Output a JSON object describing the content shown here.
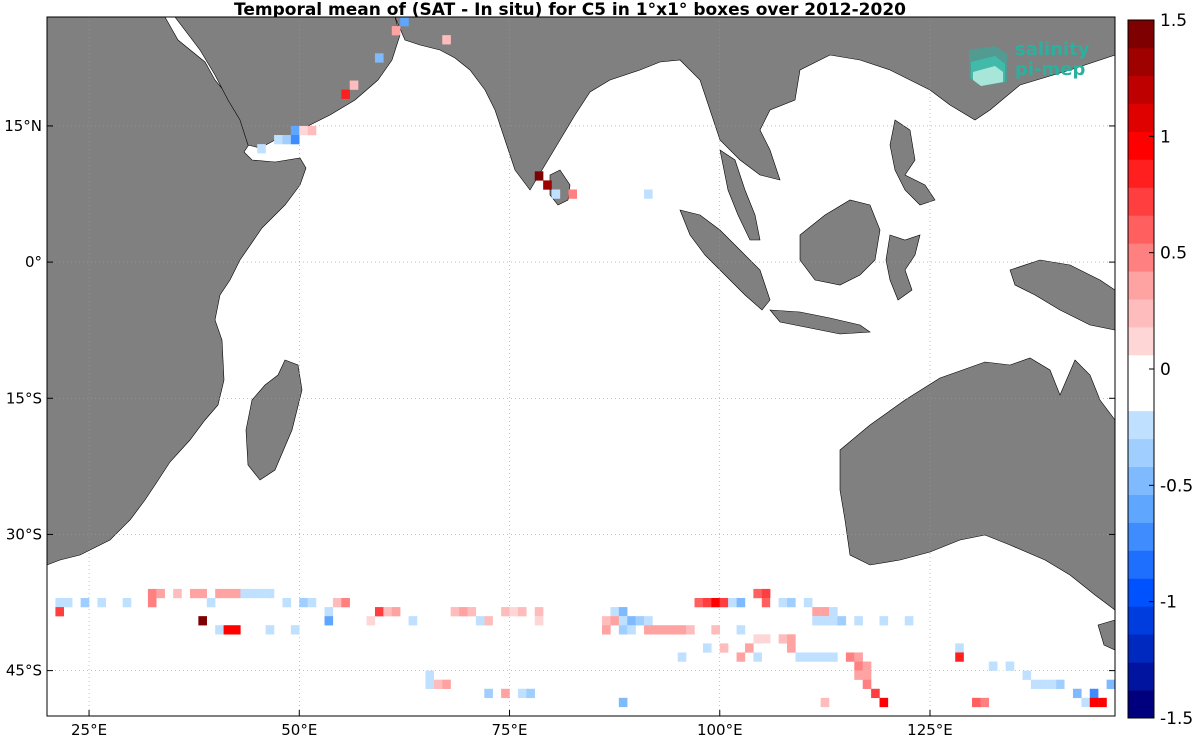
{
  "title": "Temporal mean of (SAT - In situ) for C5 in 1°x1° boxes over 2012-2020",
  "logo": {
    "line1": "salinity",
    "line2": "pi-mep"
  },
  "map": {
    "lon_range": [
      20,
      147
    ],
    "lat_range": [
      -50,
      27
    ],
    "land_color": "#808080",
    "grid": true
  },
  "axes": {
    "x_ticks": [
      {
        "lon": 25,
        "label": "25°E"
      },
      {
        "lon": 50,
        "label": "50°E"
      },
      {
        "lon": 75,
        "label": "75°E"
      },
      {
        "lon": 100,
        "label": "100°E"
      },
      {
        "lon": 125,
        "label": "125°E"
      }
    ],
    "y_ticks": [
      {
        "lat": 15,
        "label": "15°N"
      },
      {
        "lat": 0,
        "label": "0°"
      },
      {
        "lat": -15,
        "label": "15°S"
      },
      {
        "lat": -30,
        "label": "30°S"
      },
      {
        "lat": -45,
        "label": "45°S"
      }
    ]
  },
  "colorbar": {
    "min": -1.5,
    "max": 1.5,
    "ticks": [
      {
        "value": 1.5,
        "label": "1.5"
      },
      {
        "value": 1,
        "label": "1"
      },
      {
        "value": 0.5,
        "label": "0.5"
      },
      {
        "value": 0,
        "label": "0"
      },
      {
        "value": -0.5,
        "label": "-0.5"
      },
      {
        "value": -1,
        "label": "-1"
      },
      {
        "value": -1.5,
        "label": "-1.5"
      }
    ],
    "colors": [
      "#00007f",
      "#00149f",
      "#0029bf",
      "#003ddf",
      "#0052ff",
      "#1f6fff",
      "#3f8cff",
      "#5fa6ff",
      "#7fbaff",
      "#9fceff",
      "#bfe0ff",
      "#ffffff",
      "#ffffff",
      "#ffd6d6",
      "#ffbcbc",
      "#ffa2a2",
      "#ff8080",
      "#ff5f5f",
      "#ff3f3f",
      "#ff1f1f",
      "#ff0000",
      "#df0000",
      "#bf0000",
      "#9f0000",
      "#7f0000"
    ]
  },
  "chart_data": {
    "type": "heatmap",
    "title": "Temporal mean of (SAT - In situ) for C5 in 1°x1° boxes over 2012-2020",
    "units": "",
    "cells": [
      {
        "lon": 62,
        "lat": 26,
        "value": -0.6
      },
      {
        "lon": 61,
        "lat": 25,
        "value": 0.4
      },
      {
        "lon": 67,
        "lat": 24,
        "value": 0.2
      },
      {
        "lon": 59,
        "lat": 22,
        "value": -0.5
      },
      {
        "lon": 56,
        "lat": 19,
        "value": 0.2
      },
      {
        "lon": 55,
        "lat": 18,
        "value": 0.8
      },
      {
        "lon": 49,
        "lat": 14,
        "value": -0.6
      },
      {
        "lon": 50,
        "lat": 14,
        "value": 0.1
      },
      {
        "lon": 51,
        "lat": 14,
        "value": 0.2
      },
      {
        "lon": 47,
        "lat": 13,
        "value": -0.3
      },
      {
        "lon": 48,
        "lat": 13,
        "value": -0.4
      },
      {
        "lon": 49,
        "lat": 13,
        "value": -0.7
      },
      {
        "lon": 45,
        "lat": 12,
        "value": -0.3
      },
      {
        "lon": 78,
        "lat": 9,
        "value": 1.5
      },
      {
        "lon": 79,
        "lat": 8,
        "value": 1.3
      },
      {
        "lon": 80,
        "lat": 7,
        "value": -0.3
      },
      {
        "lon": 82,
        "lat": 7,
        "value": 0.5
      },
      {
        "lon": 91,
        "lat": 7,
        "value": -0.3
      },
      {
        "lon": 21,
        "lat": -38,
        "value": -0.3
      },
      {
        "lon": 22,
        "lat": -38,
        "value": -0.3
      },
      {
        "lon": 24,
        "lat": -38,
        "value": -0.4
      },
      {
        "lon": 26,
        "lat": -38,
        "value": -0.2
      },
      {
        "lon": 29,
        "lat": -38,
        "value": -0.2
      },
      {
        "lon": 32,
        "lat": -37,
        "value": 0.5
      },
      {
        "lon": 33,
        "lat": -37,
        "value": 0.4
      },
      {
        "lon": 32,
        "lat": -38,
        "value": 0.5
      },
      {
        "lon": 21,
        "lat": -39,
        "value": 0.7
      },
      {
        "lon": 35,
        "lat": -37,
        "value": 0.2
      },
      {
        "lon": 37,
        "lat": -37,
        "value": 0.3
      },
      {
        "lon": 38,
        "lat": -37,
        "value": 0.4
      },
      {
        "lon": 40,
        "lat": -37,
        "value": 0.4
      },
      {
        "lon": 41,
        "lat": -37,
        "value": 0.4
      },
      {
        "lon": 42,
        "lat": -37,
        "value": 0.4
      },
      {
        "lon": 43,
        "lat": -37,
        "value": -0.2
      },
      {
        "lon": 44,
        "lat": -37,
        "value": -0.2
      },
      {
        "lon": 45,
        "lat": -37,
        "value": -0.3
      },
      {
        "lon": 46,
        "lat": -37,
        "value": -0.2
      },
      {
        "lon": 39,
        "lat": -38,
        "value": -0.2
      },
      {
        "lon": 48,
        "lat": -38,
        "value": -0.3
      },
      {
        "lon": 50,
        "lat": -38,
        "value": -0.4
      },
      {
        "lon": 51,
        "lat": -38,
        "value": -0.2
      },
      {
        "lon": 54,
        "lat": -38,
        "value": 0.2
      },
      {
        "lon": 55,
        "lat": -38,
        "value": 0.5
      },
      {
        "lon": 53,
        "lat": -39,
        "value": -0.3
      },
      {
        "lon": 38,
        "lat": -40,
        "value": 1.4
      },
      {
        "lon": 40,
        "lat": -41,
        "value": -0.3
      },
      {
        "lon": 41,
        "lat": -41,
        "value": 0.9
      },
      {
        "lon": 42,
        "lat": -41,
        "value": 1.0
      },
      {
        "lon": 46,
        "lat": -41,
        "value": -0.3
      },
      {
        "lon": 49,
        "lat": -41,
        "value": -0.3
      },
      {
        "lon": 53,
        "lat": -40,
        "value": -0.6
      },
      {
        "lon": 59,
        "lat": -39,
        "value": 0.7
      },
      {
        "lon": 60,
        "lat": -39,
        "value": 0.2
      },
      {
        "lon": 61,
        "lat": -39,
        "value": 0.3
      },
      {
        "lon": 58,
        "lat": -40,
        "value": 0.1
      },
      {
        "lon": 63,
        "lat": -40,
        "value": -0.3
      },
      {
        "lon": 68,
        "lat": -39,
        "value": 0.2
      },
      {
        "lon": 69,
        "lat": -39,
        "value": 0.3
      },
      {
        "lon": 70,
        "lat": -39,
        "value": 0.2
      },
      {
        "lon": 72,
        "lat": -40,
        "value": 0.2
      },
      {
        "lon": 71,
        "lat": -40,
        "value": -0.2
      },
      {
        "lon": 74,
        "lat": -39,
        "value": 0.2
      },
      {
        "lon": 75,
        "lat": -39,
        "value": 0.1
      },
      {
        "lon": 76,
        "lat": -39,
        "value": 0.2
      },
      {
        "lon": 78,
        "lat": -39,
        "value": 0.2
      },
      {
        "lon": 78,
        "lat": -40,
        "value": 0.1
      },
      {
        "lon": 87,
        "lat": -39,
        "value": -0.2
      },
      {
        "lon": 88,
        "lat": -39,
        "value": -0.5
      },
      {
        "lon": 86,
        "lat": -40,
        "value": 0.2
      },
      {
        "lon": 87,
        "lat": -40,
        "value": 0.3
      },
      {
        "lon": 88,
        "lat": -40,
        "value": -0.3
      },
      {
        "lon": 89,
        "lat": -40,
        "value": -0.5
      },
      {
        "lon": 90,
        "lat": -40,
        "value": -0.4
      },
      {
        "lon": 91,
        "lat": -40,
        "value": -0.2
      },
      {
        "lon": 88,
        "lat": -41,
        "value": -0.4
      },
      {
        "lon": 89,
        "lat": -41,
        "value": -0.2
      },
      {
        "lon": 86,
        "lat": -41,
        "value": 0.3
      },
      {
        "lon": 91,
        "lat": -41,
        "value": 0.3
      },
      {
        "lon": 92,
        "lat": -41,
        "value": 0.3
      },
      {
        "lon": 93,
        "lat": -41,
        "value": 0.4
      },
      {
        "lon": 94,
        "lat": -41,
        "value": 0.4
      },
      {
        "lon": 95,
        "lat": -41,
        "value": 0.3
      },
      {
        "lon": 96,
        "lat": -41,
        "value": 0.2
      },
      {
        "lon": 99,
        "lat": -41,
        "value": 0.2
      },
      {
        "lon": 102,
        "lat": -41,
        "value": -0.3
      },
      {
        "lon": 97,
        "lat": -38,
        "value": 0.6
      },
      {
        "lon": 98,
        "lat": -38,
        "value": 0.7
      },
      {
        "lon": 99,
        "lat": -38,
        "value": 1.0
      },
      {
        "lon": 100,
        "lat": -38,
        "value": 0.7
      },
      {
        "lon": 101,
        "lat": -38,
        "value": -0.3
      },
      {
        "lon": 102,
        "lat": -38,
        "value": -0.5
      },
      {
        "lon": 104,
        "lat": -37,
        "value": 0.6
      },
      {
        "lon": 105,
        "lat": -37,
        "value": 0.7
      },
      {
        "lon": 105,
        "lat": -38,
        "value": 0.6
      },
      {
        "lon": 106,
        "lat": -38,
        "value": -0.1
      },
      {
        "lon": 107,
        "lat": -38,
        "value": -0.2
      },
      {
        "lon": 108,
        "lat": -38,
        "value": -0.4
      },
      {
        "lon": 110,
        "lat": -38,
        "value": -0.2
      },
      {
        "lon": 111,
        "lat": -39,
        "value": 0.3
      },
      {
        "lon": 112,
        "lat": -39,
        "value": 0.4
      },
      {
        "lon": 113,
        "lat": -39,
        "value": -0.2
      },
      {
        "lon": 111,
        "lat": -40,
        "value": -0.2
      },
      {
        "lon": 112,
        "lat": -40,
        "value": -0.3
      },
      {
        "lon": 113,
        "lat": -40,
        "value": -0.2
      },
      {
        "lon": 114,
        "lat": -40,
        "value": -0.4
      },
      {
        "lon": 116,
        "lat": -40,
        "value": -0.3
      },
      {
        "lon": 119,
        "lat": -40,
        "value": -0.3
      },
      {
        "lon": 122,
        "lat": -40,
        "value": -0.2
      },
      {
        "lon": 98,
        "lat": -43,
        "value": -0.2
      },
      {
        "lon": 100,
        "lat": -43,
        "value": 0.2
      },
      {
        "lon": 103,
        "lat": -43,
        "value": 0.3
      },
      {
        "lon": 104,
        "lat": -42,
        "value": 0.1
      },
      {
        "lon": 105,
        "lat": -42,
        "value": 0.1
      },
      {
        "lon": 107,
        "lat": -42,
        "value": 0.2
      },
      {
        "lon": 108,
        "lat": -42,
        "value": 0.3
      },
      {
        "lon": 108,
        "lat": -43,
        "value": 0.4
      },
      {
        "lon": 105,
        "lat": -43,
        "value": -0.1
      },
      {
        "lon": 106,
        "lat": -43,
        "value": -0.1
      },
      {
        "lon": 93,
        "lat": -44,
        "value": -0.1
      },
      {
        "lon": 95,
        "lat": -44,
        "value": -0.2
      },
      {
        "lon": 102,
        "lat": -44,
        "value": 0.3
      },
      {
        "lon": 104,
        "lat": -44,
        "value": -0.2
      },
      {
        "lon": 109,
        "lat": -44,
        "value": -0.2
      },
      {
        "lon": 110,
        "lat": -44,
        "value": -0.2
      },
      {
        "lon": 111,
        "lat": -44,
        "value": -0.3
      },
      {
        "lon": 112,
        "lat": -44,
        "value": -0.2
      },
      {
        "lon": 113,
        "lat": -44,
        "value": -0.3
      },
      {
        "lon": 115,
        "lat": -44,
        "value": 0.5
      },
      {
        "lon": 116,
        "lat": -44,
        "value": 0.4
      },
      {
        "lon": 116,
        "lat": -45,
        "value": 0.5
      },
      {
        "lon": 117,
        "lat": -45,
        "value": 0.3
      },
      {
        "lon": 116,
        "lat": -46,
        "value": 0.4
      },
      {
        "lon": 117,
        "lat": -46,
        "value": 0.4
      },
      {
        "lon": 117,
        "lat": -47,
        "value": 0.5
      },
      {
        "lon": 118,
        "lat": -48,
        "value": 0.7
      },
      {
        "lon": 119,
        "lat": -49,
        "value": 0.9
      },
      {
        "lon": 128,
        "lat": -43,
        "value": -0.2
      },
      {
        "lon": 130,
        "lat": -43,
        "value": -0.1
      },
      {
        "lon": 128,
        "lat": -44,
        "value": 0.8
      },
      {
        "lon": 131,
        "lat": -44,
        "value": -0.1
      },
      {
        "lon": 132,
        "lat": -45,
        "value": -0.3
      },
      {
        "lon": 134,
        "lat": -45,
        "value": -0.3
      },
      {
        "lon": 133,
        "lat": -46,
        "value": -0.1
      },
      {
        "lon": 136,
        "lat": -46,
        "value": -0.2
      },
      {
        "lon": 137,
        "lat": -47,
        "value": -0.2
      },
      {
        "lon": 138,
        "lat": -47,
        "value": -0.3
      },
      {
        "lon": 139,
        "lat": -47,
        "value": -0.3
      },
      {
        "lon": 140,
        "lat": -47,
        "value": -0.4
      },
      {
        "lon": 141,
        "lat": -47,
        "value": -0.1
      },
      {
        "lon": 142,
        "lat": -48,
        "value": -0.5
      },
      {
        "lon": 144,
        "lat": -48,
        "value": -0.7
      },
      {
        "lon": 143,
        "lat": -49,
        "value": -0.3
      },
      {
        "lon": 144,
        "lat": -49,
        "value": 0.9
      },
      {
        "lon": 145,
        "lat": -49,
        "value": 1.0
      },
      {
        "lon": 146,
        "lat": -47,
        "value": -0.5
      },
      {
        "lon": 130,
        "lat": -49,
        "value": 0.6
      },
      {
        "lon": 131,
        "lat": -49,
        "value": 0.5
      },
      {
        "lon": 134,
        "lat": -49,
        "value": -0.1
      },
      {
        "lon": 112,
        "lat": -49,
        "value": 0.2
      },
      {
        "lon": 66,
        "lat": -47,
        "value": 0.2
      },
      {
        "lon": 67,
        "lat": -47,
        "value": 0.3
      },
      {
        "lon": 65,
        "lat": -46,
        "value": -0.2
      },
      {
        "lon": 65,
        "lat": -47,
        "value": -0.2
      },
      {
        "lon": 72,
        "lat": -48,
        "value": -0.4
      },
      {
        "lon": 74,
        "lat": -48,
        "value": 0.3
      },
      {
        "lon": 76,
        "lat": -48,
        "value": -0.3
      },
      {
        "lon": 77,
        "lat": -48,
        "value": -0.4
      },
      {
        "lon": 88,
        "lat": -49,
        "value": -0.5
      }
    ]
  }
}
